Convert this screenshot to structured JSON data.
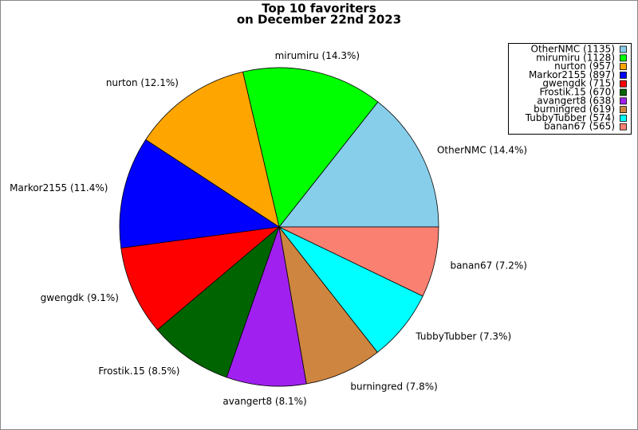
{
  "chart_data": {
    "type": "pie",
    "title": "Top 10 favoriters",
    "subtitle": "on December 22nd 2023",
    "categories": [
      "OtherNMC",
      "mirumiru",
      "nurton",
      "Markor2155",
      "gwengdk",
      "Frostik.15",
      "avangert8",
      "burningred",
      "TubbyTubber",
      "banan67"
    ],
    "values": [
      1135,
      1128,
      957,
      897,
      715,
      670,
      638,
      619,
      574,
      565
    ],
    "value_labels": [
      "OtherNMC (14.4%)",
      "mirumiru (14.3%)",
      "nurton (12.1%)",
      "Markor2155 (11.4%)",
      "gwengdk (9.1%)",
      "Frostik.15 (8.5%)",
      "avangert8 (8.1%)",
      "burningred (7.8%)",
      "TubbyTubber (7.3%)",
      "banan67 (7.2%)"
    ],
    "legend_labels": [
      "OtherNMC (1135)",
      "mirumiru (1128)",
      "nurton (957)",
      "Markor2155 (897)",
      "gwengdk (715)",
      "Frostik.15 (670)",
      "avangert8 (638)",
      "burningred (619)",
      "TubbyTubber (574)",
      "banan67 (565)"
    ],
    "colors": [
      "#87ceeb",
      "#00ff00",
      "#ffa500",
      "#0000ff",
      "#ff0000",
      "#006400",
      "#a020f0",
      "#cd853f",
      "#00ffff",
      "#fa8072"
    ],
    "legend": "upper right"
  }
}
